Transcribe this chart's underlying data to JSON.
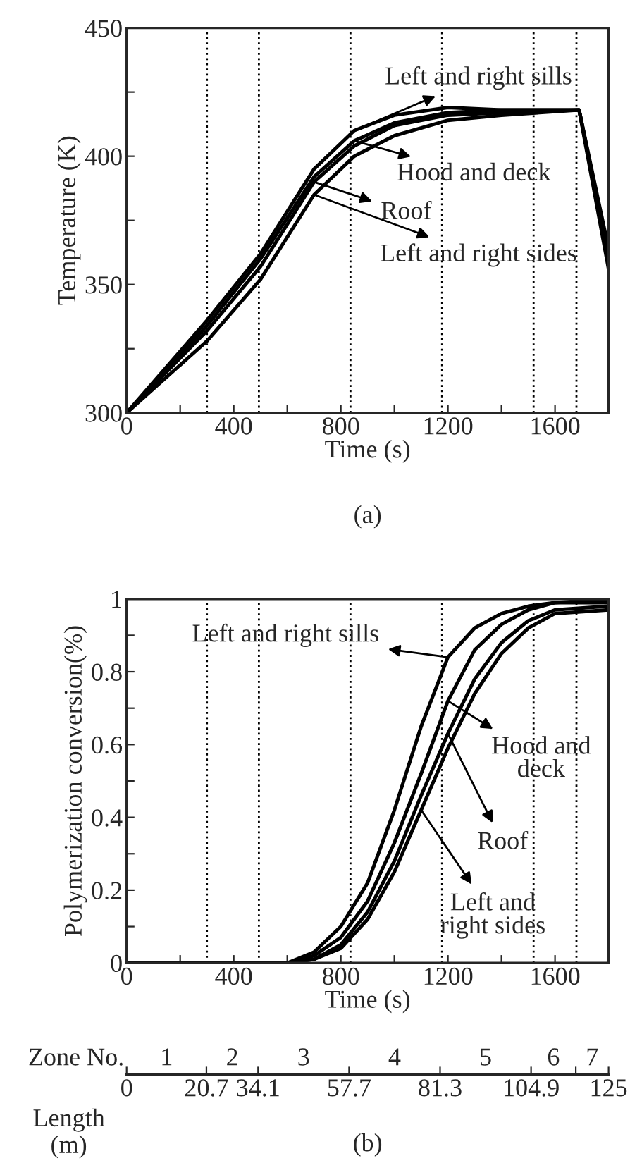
{
  "chart_data": [
    {
      "type": "line",
      "title": "(a)",
      "xlabel": "Time (s)",
      "ylabel": "Temperature (K)",
      "xlim": [
        0,
        1800
      ],
      "xticks": [
        0,
        {
          "value": 200,
          "label": null
        },
        400,
        {
          "value": 600,
          "label": null
        },
        800,
        {
          "value": 1000,
          "label": null
        },
        1200,
        {
          "value": 1400,
          "label": null
        },
        1600
      ],
      "ylim": [
        300,
        450
      ],
      "yticks": [
        300,
        {
          "value": 325,
          "label": null
        },
        350,
        {
          "value": 375,
          "label": null
        },
        400,
        {
          "value": 425,
          "label": null
        },
        450
      ],
      "grid": false,
      "legend": false,
      "x": [
        0,
        300,
        500,
        700,
        850,
        1000,
        1200,
        1400,
        1690,
        1800
      ],
      "series": [
        {
          "color": "#000000",
          "values": [
            300,
            336,
            362,
            395,
            410,
            416,
            419,
            418,
            418,
            360
          ]
        },
        {
          "color": "#000000",
          "values": [
            300,
            334,
            360,
            392,
            406,
            413,
            417,
            418,
            418,
            362
          ]
        },
        {
          "color": "#000000",
          "values": [
            300,
            332,
            357,
            390,
            404,
            412,
            416,
            417,
            418,
            364
          ]
        },
        {
          "color": "#000000",
          "values": [
            300,
            328,
            352,
            385,
            400,
            408,
            414,
            416,
            418,
            356
          ]
        }
      ],
      "ref_lines": [
        {
          "axis": "x",
          "value": 300,
          "line_style": "dotted"
        },
        {
          "axis": "x",
          "value": 494,
          "line_style": "dotted"
        },
        {
          "axis": "x",
          "value": 836,
          "line_style": "dotted"
        },
        {
          "axis": "x",
          "value": 1178,
          "line_style": "dotted"
        },
        {
          "axis": "x",
          "value": 1520,
          "line_style": "dotted"
        },
        {
          "axis": "x",
          "value": 1680,
          "line_style": "dotted"
        }
      ],
      "annotations": [
        {
          "text": "Left and right sills",
          "x": 850,
          "y": 410
        },
        {
          "text": "Hood and deck",
          "x": 850,
          "y": 406
        },
        {
          "text": "Roof",
          "x": 700,
          "y": 390
        },
        {
          "text": "Left and right sides",
          "x": 700,
          "y": 385
        }
      ]
    },
    {
      "type": "line",
      "title": "(b)",
      "xlabel": "Time (s)",
      "ylabel": "Polymerization conversion(%)",
      "xlim": [
        0,
        1800
      ],
      "xticks": [
        0,
        {
          "value": 200,
          "label": null
        },
        400,
        {
          "value": 600,
          "label": null
        },
        800,
        {
          "value": 1000,
          "label": null
        },
        1200,
        {
          "value": 1400,
          "label": null
        },
        1600
      ],
      "ylim": [
        0,
        1
      ],
      "yticks": [
        0,
        {
          "value": 0.1,
          "label": null
        },
        0.2,
        {
          "value": 0.3,
          "label": null
        },
        0.4,
        {
          "value": 0.5,
          "label": null
        },
        0.6,
        {
          "value": 0.7,
          "label": null
        },
        0.8,
        {
          "value": 0.9,
          "label": null
        },
        1
      ],
      "x2lim": [
        0,
        125
      ],
      "x2ticks": [
        0,
        20.7,
        34.1,
        57.7,
        81.3,
        104.9,
        {
          "value": 116.5,
          "label": null
        },
        125
      ],
      "x2label": "Length\n(m)",
      "grid": false,
      "legend": false,
      "x": [
        0,
        600,
        700,
        800,
        900,
        1000,
        1100,
        1200,
        1300,
        1400,
        1500,
        1600,
        1800
      ],
      "series": [
        {
          "color": "#000000",
          "values": [
            0,
            0,
            0.03,
            0.1,
            0.22,
            0.42,
            0.65,
            0.84,
            0.92,
            0.96,
            0.98,
            0.99,
            1.0
          ]
        },
        {
          "color": "#000000",
          "values": [
            0,
            0,
            0.02,
            0.07,
            0.17,
            0.33,
            0.52,
            0.72,
            0.86,
            0.93,
            0.97,
            0.99,
            0.99
          ]
        },
        {
          "color": "#000000",
          "values": [
            0,
            0,
            0.01,
            0.05,
            0.14,
            0.28,
            0.46,
            0.63,
            0.78,
            0.88,
            0.94,
            0.97,
            0.98
          ]
        },
        {
          "color": "#000000",
          "values": [
            0,
            0,
            0.01,
            0.04,
            0.12,
            0.25,
            0.42,
            0.59,
            0.74,
            0.85,
            0.92,
            0.96,
            0.97
          ]
        }
      ],
      "ref_lines": [
        {
          "axis": "x",
          "value": 300,
          "line_style": "dotted"
        },
        {
          "axis": "x",
          "value": 494,
          "line_style": "dotted"
        },
        {
          "axis": "x",
          "value": 836,
          "line_style": "dotted"
        },
        {
          "axis": "x",
          "value": 1178,
          "line_style": "dotted"
        },
        {
          "axis": "x",
          "value": 1520,
          "line_style": "dotted"
        },
        {
          "axis": "x",
          "value": 1680,
          "line_style": "dotted"
        }
      ],
      "annotations": [
        {
          "text": "Left and right sills",
          "x": 1200,
          "y": 0.84
        },
        {
          "text": "Hood and\ndeck",
          "x": 1200,
          "y": 0.72
        },
        {
          "text": "Roof",
          "x": 1200,
          "y": 0.63
        },
        {
          "text": "Left and\nright sides",
          "x": 1100,
          "y": 0.42
        },
        "Zone No.",
        "1",
        "2",
        "3",
        "4",
        "5",
        "6",
        "7"
      ]
    }
  ]
}
